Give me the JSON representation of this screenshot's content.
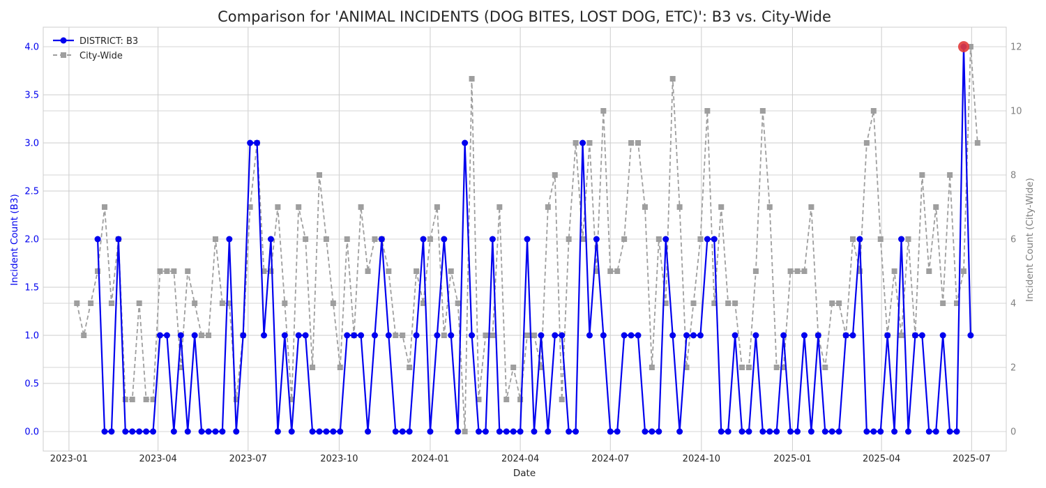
{
  "chart_data": {
    "type": "line",
    "title": "Comparison for 'ANIMAL INCIDENTS (DOG BITES, LOST DOG, ETC)': B3 vs. City-Wide",
    "xlabel": "Date",
    "ylabel_left": "Incident Count (B3)",
    "ylabel_right": "Incident Count (City-Wide)",
    "ylim_left": [
      -0.2,
      4.2
    ],
    "ylim_right": [
      -0.6,
      12.6
    ],
    "yticks_left": [
      "0.0",
      "0.5",
      "1.0",
      "1.5",
      "2.0",
      "2.5",
      "3.0",
      "3.5",
      "4.0"
    ],
    "yticks_right": [
      "0",
      "2",
      "4",
      "6",
      "8",
      "10",
      "12"
    ],
    "xticks": [
      "2023-01",
      "2023-04",
      "2023-07",
      "2023-10",
      "2024-01",
      "2024-04",
      "2024-07",
      "2024-10",
      "2025-01",
      "2025-04",
      "2025-07"
    ],
    "x_start": "2023-01-09",
    "x_step_days": 7,
    "grid": true,
    "legend_position": "top-left",
    "highlight": {
      "date": "2025-06-23",
      "value": 4,
      "color": "#e23b3b"
    },
    "series": [
      {
        "name": "DISTRICT: B3",
        "axis": "left",
        "color": "#0000ee",
        "style": "solid-circle",
        "start_index": 3,
        "values": [
          2,
          0,
          0,
          2,
          0,
          0,
          0,
          0,
          0,
          1,
          1,
          0,
          1,
          0,
          1,
          0,
          0,
          0,
          0,
          2,
          0,
          1,
          3,
          3,
          1,
          2,
          0,
          1,
          0,
          1,
          1,
          0,
          0,
          0,
          0,
          0,
          1,
          1,
          1,
          0,
          1,
          2,
          1,
          0,
          0,
          0,
          1,
          2,
          0,
          1,
          2,
          1,
          0,
          3,
          1,
          0,
          0,
          2,
          0,
          0,
          0,
          0,
          2,
          0,
          1,
          0,
          1,
          1,
          0,
          0,
          3,
          1,
          2,
          1,
          0,
          0,
          1,
          1,
          1,
          0,
          0,
          0,
          2,
          1,
          0,
          1,
          1,
          1,
          2,
          2,
          0,
          0,
          1,
          0,
          0,
          1,
          0,
          0,
          0,
          1,
          0,
          0,
          1,
          0,
          1,
          0,
          0,
          0,
          1,
          1,
          2,
          0,
          0,
          0,
          1,
          0,
          2,
          0,
          1,
          1,
          0,
          0,
          1,
          0,
          0,
          4,
          1
        ]
      },
      {
        "name": "City-Wide",
        "axis": "right",
        "color": "#9e9e9e",
        "style": "dashed-square",
        "start_index": 0,
        "values": [
          4,
          3,
          4,
          5,
          7,
          4,
          6,
          1,
          1,
          4,
          1,
          1,
          5,
          5,
          5,
          2,
          5,
          4,
          3,
          3,
          6,
          4,
          4,
          1,
          3,
          7,
          9,
          5,
          5,
          7,
          4,
          1,
          7,
          6,
          2,
          8,
          6,
          4,
          2,
          6,
          3,
          7,
          5,
          6,
          6,
          5,
          3,
          3,
          2,
          5,
          4,
          6,
          7,
          3,
          5,
          4,
          0,
          11,
          1,
          3,
          3,
          7,
          1,
          2,
          1,
          3,
          3,
          2,
          7,
          8,
          1,
          6,
          9,
          6,
          9,
          5,
          10,
          5,
          5,
          6,
          9,
          9,
          7,
          2,
          6,
          4,
          11,
          7,
          2,
          4,
          6,
          10,
          4,
          7,
          4,
          4,
          2,
          2,
          5,
          10,
          7,
          2,
          2,
          5,
          5,
          5,
          7,
          3,
          2,
          4,
          4,
          3,
          6,
          5,
          9,
          10,
          6,
          3,
          5,
          3,
          6,
          3,
          8,
          5,
          7,
          4,
          8,
          4,
          5,
          12,
          9
        ]
      }
    ]
  }
}
